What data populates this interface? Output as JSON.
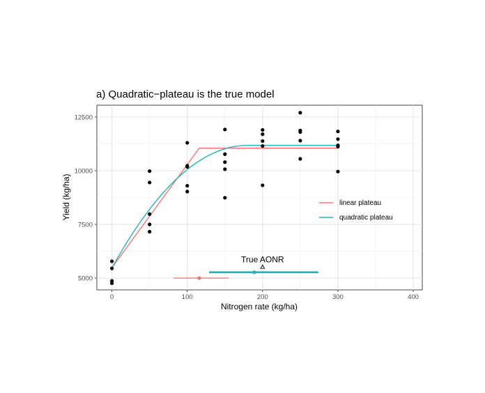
{
  "chart_data": {
    "type": "scatter",
    "title": "a) Quadratic−plateau is the true model",
    "xlabel": "Nitrogen rate (kg/ha)",
    "ylabel": "Yield (kg/ha)",
    "xlim": [
      -20,
      412
    ],
    "ylim": [
      4450,
      13050
    ],
    "x_ticks": [
      0,
      100,
      200,
      300,
      400
    ],
    "x_tick_labels": [
      "0",
      "100",
      "200",
      "300",
      "400"
    ],
    "y_ticks": [
      5000,
      7500,
      10000,
      12500
    ],
    "y_tick_labels": [
      "5000",
      "7500",
      "10000",
      "12500"
    ],
    "grid": true,
    "legend_position": "right",
    "points": [
      {
        "x": 0,
        "y": 5780
      },
      {
        "x": 0,
        "y": 5450
      },
      {
        "x": 0,
        "y": 4870
      },
      {
        "x": 0,
        "y": 4760
      },
      {
        "x": 50,
        "y": 9980
      },
      {
        "x": 50,
        "y": 9450
      },
      {
        "x": 50,
        "y": 7980
      },
      {
        "x": 50,
        "y": 7500
      },
      {
        "x": 50,
        "y": 7160
      },
      {
        "x": 100,
        "y": 11300
      },
      {
        "x": 100,
        "y": 10230
      },
      {
        "x": 100,
        "y": 10180
      },
      {
        "x": 100,
        "y": 9300
      },
      {
        "x": 100,
        "y": 9030
      },
      {
        "x": 150,
        "y": 11920
      },
      {
        "x": 150,
        "y": 10770
      },
      {
        "x": 150,
        "y": 10400
      },
      {
        "x": 150,
        "y": 10070
      },
      {
        "x": 150,
        "y": 8740
      },
      {
        "x": 200,
        "y": 11900
      },
      {
        "x": 200,
        "y": 11700
      },
      {
        "x": 200,
        "y": 11380
      },
      {
        "x": 200,
        "y": 11150
      },
      {
        "x": 200,
        "y": 9320
      },
      {
        "x": 250,
        "y": 12700
      },
      {
        "x": 250,
        "y": 11870
      },
      {
        "x": 250,
        "y": 11800
      },
      {
        "x": 250,
        "y": 11400
      },
      {
        "x": 250,
        "y": 10550
      },
      {
        "x": 300,
        "y": 11830
      },
      {
        "x": 300,
        "y": 11470
      },
      {
        "x": 300,
        "y": 11180
      },
      {
        "x": 300,
        "y": 11120
      },
      {
        "x": 300,
        "y": 9960
      }
    ],
    "series": [
      {
        "name": "linear plateau",
        "color": "#F8766D",
        "x": [
          0,
          116,
          300
        ],
        "y": [
          5480,
          11050,
          11050
        ],
        "aonr": {
          "x": 116,
          "y": 5000,
          "ci": [
            82,
            155
          ]
        }
      },
      {
        "name": "quadratic plateau",
        "color": "#1FB5BE",
        "intercept": 5470,
        "plateau": 11180,
        "joint": 180,
        "x_end": 300,
        "aonr": {
          "x": 189,
          "y": 5270,
          "ci": [
            129,
            274
          ]
        }
      }
    ],
    "annotation": {
      "text": "True AONR",
      "marker_x": 200,
      "marker_y": 5530
    }
  }
}
